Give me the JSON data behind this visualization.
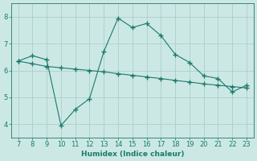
{
  "line1_x": [
    7,
    8,
    9,
    10,
    11,
    12,
    13,
    14,
    15,
    16,
    17,
    18,
    19,
    20,
    21,
    22,
    23
  ],
  "line1_y": [
    6.35,
    6.55,
    6.4,
    3.95,
    4.55,
    4.95,
    6.7,
    7.95,
    7.6,
    7.75,
    7.3,
    6.6,
    6.3,
    5.8,
    5.7,
    5.2,
    5.45
  ],
  "line2_x": [
    7,
    8,
    9,
    10,
    11,
    12,
    13,
    14,
    15,
    16,
    17,
    18,
    19,
    20,
    21,
    22,
    23
  ],
  "line2_y": [
    6.35,
    6.25,
    6.15,
    6.1,
    6.05,
    6.0,
    5.95,
    5.88,
    5.82,
    5.76,
    5.7,
    5.63,
    5.57,
    5.5,
    5.45,
    5.4,
    5.35
  ],
  "line_color": "#1a7a6a",
  "bg_color": "#cce8e5",
  "grid_color": "#aacfcc",
  "xlabel": "Humidex (Indice chaleur)",
  "ylim": [
    3.5,
    8.5
  ],
  "xlim": [
    6.5,
    23.5
  ],
  "xticks": [
    7,
    8,
    9,
    10,
    11,
    12,
    13,
    14,
    15,
    16,
    17,
    18,
    19,
    20,
    21,
    22,
    23
  ],
  "yticks": [
    4,
    5,
    6,
    7,
    8
  ]
}
